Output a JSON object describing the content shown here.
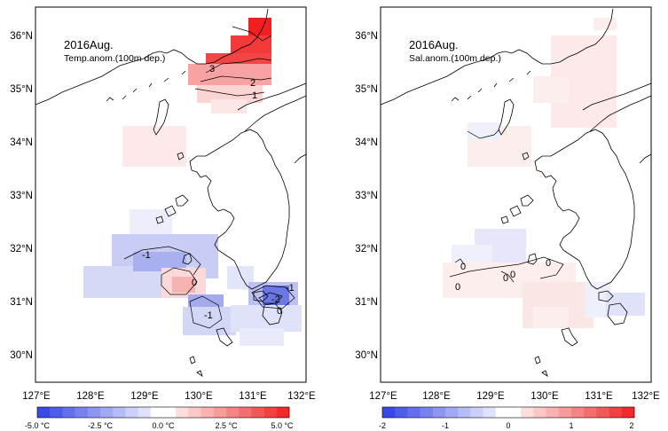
{
  "colors": {
    "negative_strong": "#2f3fe6",
    "negative_light": "#dfe2f8",
    "positive_light": "#fbe0e0",
    "positive_strong": "#ee2020",
    "coast": "#000000",
    "frame": "#000000"
  },
  "panels": [
    {
      "title": "2016Aug.",
      "subtitle": "Temp.anom.(100m dep.)",
      "colorbar_labels": [
        "-5.0 °C",
        "-2.5 °C",
        "0.0 °C",
        "2.5 °C",
        "5.0 °C"
      ],
      "contour_labels": [
        "3",
        "2",
        "1",
        "-1",
        "0",
        "-1",
        "-2",
        "-1",
        "0"
      ]
    },
    {
      "title": "2016Aug.",
      "subtitle": "Sal.anom.(100m dep.)",
      "colorbar_labels": [
        "-2",
        "-1",
        "0",
        "1",
        "2"
      ],
      "contour_labels": [
        "0",
        "0",
        "0",
        "0",
        "0"
      ]
    }
  ],
  "axes": {
    "x_ticks": [
      "127°E",
      "128°E",
      "129°E",
      "130°E",
      "131°E",
      "132°E"
    ],
    "y_ticks": [
      "36°N",
      "35°N",
      "34°N",
      "33°N",
      "32°N",
      "31°N",
      "30°N"
    ]
  }
}
